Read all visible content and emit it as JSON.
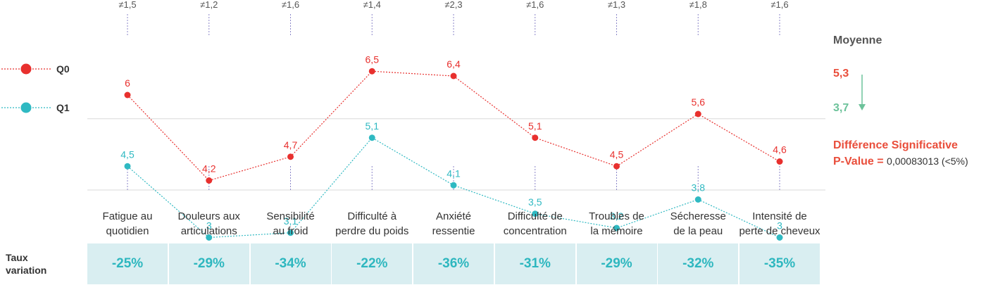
{
  "chart_data": {
    "type": "line",
    "categories_lines": [
      [
        "Fatigue au",
        "quotidien"
      ],
      [
        "Douleurs aux",
        "articulations"
      ],
      [
        "Sensibilité",
        "au froid"
      ],
      [
        "Difficulté à",
        "perdre du poids"
      ],
      [
        "Anxiété",
        "ressentie"
      ],
      [
        "Difficulté de",
        "concentration"
      ],
      [
        "Troubles de",
        "la mémoire"
      ],
      [
        "Sécheresse",
        "de la peau"
      ],
      [
        "Intensité de",
        "perte de cheveux"
      ]
    ],
    "differences": [
      "≠1,5",
      "≠1,2",
      "≠1,6",
      "≠1,4",
      "≠2,3",
      "≠1,6",
      "≠1,3",
      "≠1,8",
      "≠1,6"
    ],
    "series": [
      {
        "name": "Q0",
        "color": "#e8302e",
        "values": [
          6,
          4.2,
          4.7,
          6.5,
          6.4,
          5.1,
          4.5,
          5.6,
          4.6
        ],
        "labels": [
          "6",
          "4,2",
          "4,7",
          "6,5",
          "6,4",
          "5,1",
          "4,5",
          "5,6",
          "4,6"
        ]
      },
      {
        "name": "Q1",
        "color": "#2fb9c2",
        "values": [
          4.5,
          3,
          3.1,
          5.1,
          4.1,
          3.5,
          3.2,
          3.8,
          3
        ],
        "labels": [
          "4,5",
          "3",
          "3,1",
          "5,1",
          "4,1",
          "3,5",
          "3,2",
          "3,8",
          "3"
        ]
      }
    ],
    "ylim": [
      2,
      8
    ],
    "gridlines": [
      4,
      5.5
    ],
    "legend_position": "left",
    "variation_title_lines": [
      "Taux",
      "variation"
    ],
    "variations": [
      "-25%",
      "-29%",
      "-34%",
      "-22%",
      "-36%",
      "-31%",
      "-29%",
      "-32%",
      "-35%"
    ]
  },
  "summary": {
    "title": "Moyenne",
    "q0_mean": "5,3",
    "q1_mean": "3,7",
    "significance": "Différence Significative",
    "pvalue_label": "P-Value =",
    "pvalue_value": "0,00083013 (<5%)",
    "arrow_color": "#6cc29a"
  }
}
